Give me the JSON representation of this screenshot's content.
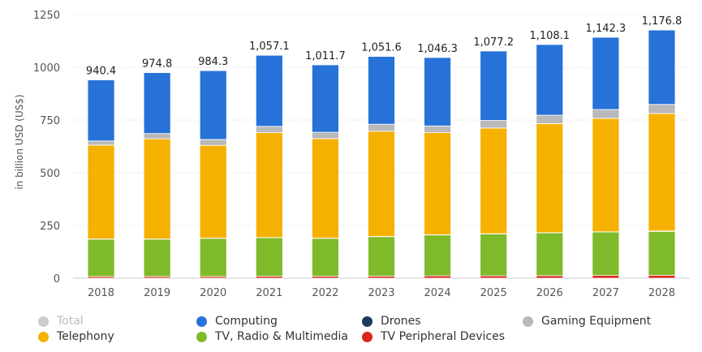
{
  "chart_data": {
    "type": "bar",
    "stacked": true,
    "categories": [
      "2018",
      "2019",
      "2020",
      "2021",
      "2022",
      "2023",
      "2024",
      "2025",
      "2026",
      "2027",
      "2028"
    ],
    "ylabel": "in billion USD (US$)",
    "ylim": [
      0,
      1250
    ],
    "yticks": [
      0,
      250,
      500,
      750,
      1000,
      1250
    ],
    "grid": true,
    "legend_position": "bottom",
    "totals": {
      "name": "Total",
      "visible": false,
      "color": "#cccccc",
      "values": [
        940.4,
        974.8,
        984.3,
        1057.1,
        1011.7,
        1051.6,
        1046.3,
        1077.2,
        1108.1,
        1142.3,
        1176.8
      ],
      "labels": [
        "940.4",
        "974.8",
        "984.3",
        "1,057.1",
        "1,011.7",
        "1,051.6",
        "1,046.3",
        "1,077.2",
        "1,108.1",
        "1,142.3",
        "1,176.8"
      ]
    },
    "series": [
      {
        "name": "TV Peripheral Devices",
        "color": "#d9261c",
        "values": [
          8,
          8,
          8,
          9,
          9,
          10,
          11,
          11,
          12,
          13,
          14
        ]
      },
      {
        "name": "TV, Radio & Multimedia",
        "color": "#7fba2a",
        "values": [
          177,
          177,
          181,
          183,
          180,
          187,
          194,
          199,
          203,
          206,
          208
        ]
      },
      {
        "name": "Drones",
        "color": "#1f3a5f",
        "values": [
          1,
          1,
          1,
          1,
          1,
          1,
          1,
          1,
          1,
          1,
          2
        ]
      },
      {
        "name": "Telephony",
        "color": "#f5b100",
        "values": [
          445,
          475,
          440,
          497,
          472,
          499,
          484,
          501,
          517,
          538,
          557
        ]
      },
      {
        "name": "Gaming Equipment",
        "color": "#b9b9b9",
        "values": [
          20,
          25,
          28,
          30,
          30,
          33,
          32,
          36,
          40,
          42,
          43
        ]
      },
      {
        "name": "Computing",
        "color": "#2672d8",
        "values": [
          289.4,
          288.8,
          326.3,
          337.1,
          319.7,
          321.6,
          324.3,
          329.2,
          335.1,
          342.3,
          352.8
        ]
      }
    ]
  },
  "legend": [
    {
      "name": "Total",
      "color": "#cccccc",
      "disabled": true
    },
    {
      "name": "Computing",
      "color": "#2672d8",
      "disabled": false
    },
    {
      "name": "Drones",
      "color": "#1f3a5f",
      "disabled": false
    },
    {
      "name": "Gaming Equipment",
      "color": "#b9b9b9",
      "disabled": false
    },
    {
      "name": "Telephony",
      "color": "#f5b100",
      "disabled": false
    },
    {
      "name": "TV, Radio & Multimedia",
      "color": "#7fba2a",
      "disabled": false
    },
    {
      "name": "TV Peripheral Devices",
      "color": "#d9261c",
      "disabled": false
    }
  ]
}
